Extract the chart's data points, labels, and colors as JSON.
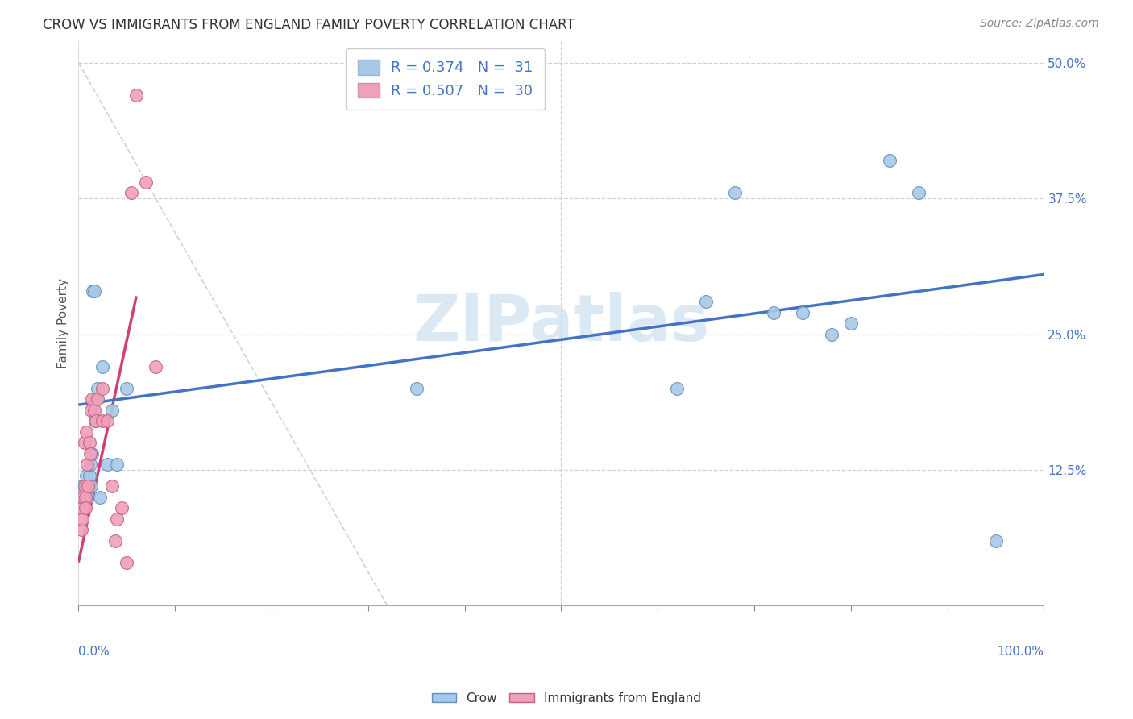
{
  "title": "CROW VS IMMIGRANTS FROM ENGLAND FAMILY POVERTY CORRELATION CHART",
  "source": "Source: ZipAtlas.com",
  "ylabel": "Family Poverty",
  "yticks": [
    0.0,
    0.125,
    0.25,
    0.375,
    0.5
  ],
  "ytick_labels": [
    "",
    "12.5%",
    "25.0%",
    "37.5%",
    "50.0%"
  ],
  "crow_color": "#a8c8e8",
  "crow_edge_color": "#6090c0",
  "immigrants_color": "#f0a0b8",
  "immigrants_edge_color": "#c06080",
  "crow_line_color": "#4472c4",
  "immigrants_line_color": "#d04070",
  "watermark_text": "ZIPatlas",
  "watermark_color": "#cce0f0",
  "crow_x": [
    0.004,
    0.006,
    0.008,
    0.009,
    0.01,
    0.011,
    0.012,
    0.013,
    0.014,
    0.015,
    0.016,
    0.017,
    0.018,
    0.02,
    0.022,
    0.025,
    0.03,
    0.035,
    0.04,
    0.05,
    0.35,
    0.62,
    0.65,
    0.68,
    0.72,
    0.75,
    0.78,
    0.8,
    0.84,
    0.87,
    0.95
  ],
  "crow_y": [
    0.11,
    0.11,
    0.12,
    0.1,
    0.1,
    0.12,
    0.13,
    0.11,
    0.14,
    0.29,
    0.29,
    0.17,
    0.19,
    0.2,
    0.1,
    0.22,
    0.13,
    0.18,
    0.13,
    0.2,
    0.2,
    0.2,
    0.28,
    0.38,
    0.27,
    0.27,
    0.25,
    0.26,
    0.41,
    0.38,
    0.06
  ],
  "immigrants_x": [
    0.003,
    0.004,
    0.004,
    0.005,
    0.006,
    0.006,
    0.007,
    0.007,
    0.008,
    0.009,
    0.01,
    0.011,
    0.012,
    0.013,
    0.014,
    0.016,
    0.018,
    0.02,
    0.025,
    0.025,
    0.03,
    0.035,
    0.038,
    0.04,
    0.045,
    0.05,
    0.055,
    0.06,
    0.07,
    0.08
  ],
  "immigrants_y": [
    0.07,
    0.09,
    0.08,
    0.1,
    0.11,
    0.15,
    0.1,
    0.09,
    0.16,
    0.13,
    0.11,
    0.15,
    0.14,
    0.18,
    0.19,
    0.18,
    0.17,
    0.19,
    0.17,
    0.2,
    0.17,
    0.11,
    0.06,
    0.08,
    0.09,
    0.04,
    0.38,
    0.47,
    0.39,
    0.22
  ],
  "crow_trend_x": [
    0.0,
    1.0
  ],
  "crow_trend_y": [
    0.185,
    0.305
  ],
  "immigrants_trend_x": [
    0.0,
    0.06
  ],
  "immigrants_trend_y": [
    0.04,
    0.285
  ],
  "dashed_line_x": [
    0.0,
    0.32
  ],
  "dashed_line_y": [
    0.5,
    0.0
  ],
  "xlim": [
    0.0,
    1.0
  ],
  "ylim": [
    0.0,
    0.52
  ],
  "background_color": "#ffffff",
  "grid_color": "#cccccc",
  "title_color": "#333333",
  "axis_color": "#4472c4",
  "marker_size": 130,
  "legend_r1": "R = 0.374   N =  31",
  "legend_r2": "R = 0.507   N =  30",
  "legend_color1": "#a8c8e8",
  "legend_color2": "#f0a0b8"
}
